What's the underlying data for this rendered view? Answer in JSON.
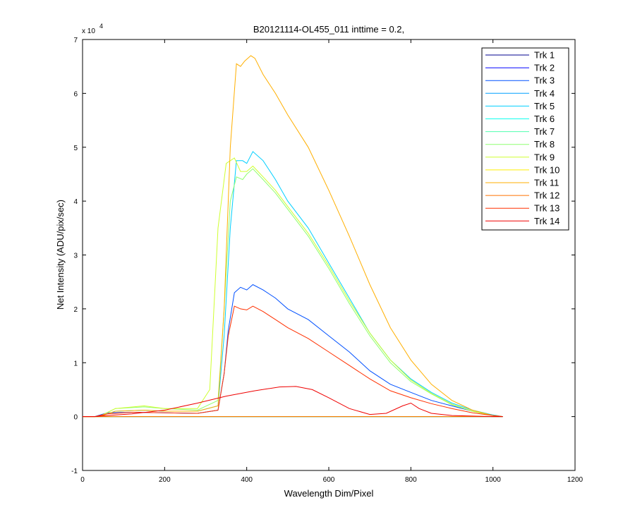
{
  "chart_data": {
    "type": "line",
    "title": "B20121114-OL455_011 inttime = 0.2,",
    "xlabel": "Wavelength Dim/Pixel",
    "ylabel": "Net Intensity (ADU/pix/sec)",
    "y_multiplier_label": "x 10",
    "y_multiplier_exponent": "4",
    "xlim": [
      0,
      1200
    ],
    "ylim": [
      -1,
      7
    ],
    "xticks": [
      0,
      200,
      400,
      600,
      800,
      1000,
      1200
    ],
    "yticks": [
      -1,
      0,
      1,
      2,
      3,
      4,
      5,
      6,
      7
    ],
    "grid": false,
    "legend_position": "top-right",
    "series": [
      {
        "name": "Trk 1",
        "color": "#00008F",
        "x": [
          0,
          1024
        ],
        "y": [
          0,
          0
        ]
      },
      {
        "name": "Trk 2",
        "color": "#0000FF",
        "x": [
          0,
          1024
        ],
        "y": [
          0,
          0
        ]
      },
      {
        "name": "Trk 3",
        "color": "#0050FF",
        "x": [
          0,
          30,
          60,
          120,
          200,
          280,
          330,
          345,
          355,
          370,
          385,
          400,
          415,
          440,
          470,
          500,
          550,
          600,
          650,
          700,
          750,
          800,
          850,
          900,
          950,
          1000,
          1024
        ],
        "y": [
          0,
          0,
          0.07,
          0.08,
          0.07,
          0.06,
          0.12,
          0.8,
          1.6,
          2.3,
          2.4,
          2.35,
          2.45,
          2.35,
          2.2,
          2.0,
          1.8,
          1.5,
          1.2,
          0.85,
          0.6,
          0.45,
          0.3,
          0.2,
          0.1,
          0.02,
          0
        ]
      },
      {
        "name": "Trk 4",
        "color": "#009FFF",
        "x": [
          0,
          1024
        ],
        "y": [
          0,
          0
        ]
      },
      {
        "name": "Trk 5",
        "color": "#00CFFF",
        "x": [
          0,
          40,
          80,
          150,
          200,
          280,
          330,
          345,
          360,
          375,
          390,
          400,
          415,
          440,
          470,
          500,
          550,
          600,
          650,
          700,
          750,
          800,
          850,
          900,
          950,
          1000,
          1024
        ],
        "y": [
          0,
          0,
          0.1,
          0.12,
          0.1,
          0.1,
          0.2,
          1.5,
          3.5,
          4.75,
          4.75,
          4.7,
          4.92,
          4.75,
          4.4,
          4.0,
          3.5,
          2.85,
          2.2,
          1.55,
          1.05,
          0.7,
          0.45,
          0.25,
          0.12,
          0.03,
          0
        ]
      },
      {
        "name": "Trk 6",
        "color": "#10FFEF",
        "x": [
          0,
          1024
        ],
        "y": [
          0,
          0
        ]
      },
      {
        "name": "Trk 7",
        "color": "#50FFAF",
        "x": [
          0,
          1024
        ],
        "y": [
          0,
          0
        ]
      },
      {
        "name": "Trk 8",
        "color": "#8FFF70",
        "x": [
          0,
          40,
          80,
          150,
          200,
          280,
          330,
          345,
          360,
          375,
          390,
          400,
          415,
          440,
          470,
          500,
          550,
          600,
          650,
          700,
          750,
          800,
          850,
          900,
          950,
          1000,
          1024
        ],
        "y": [
          0,
          0,
          0.15,
          0.18,
          0.15,
          0.12,
          0.3,
          2.0,
          4.0,
          4.45,
          4.4,
          4.5,
          4.6,
          4.4,
          4.15,
          3.85,
          3.35,
          2.75,
          2.1,
          1.5,
          1.0,
          0.65,
          0.42,
          0.22,
          0.1,
          0.02,
          0
        ]
      },
      {
        "name": "Trk 9",
        "color": "#CFFF30",
        "x": [
          0,
          40,
          80,
          150,
          200,
          280,
          310,
          330,
          350,
          370,
          385,
          400,
          415,
          440,
          470,
          500,
          550,
          600,
          650,
          700,
          750,
          800,
          850,
          900,
          950,
          1000,
          1024
        ],
        "y": [
          0,
          0,
          0.15,
          0.2,
          0.15,
          0.15,
          0.5,
          3.5,
          4.7,
          4.8,
          4.55,
          4.55,
          4.65,
          4.45,
          4.2,
          3.9,
          3.4,
          2.8,
          2.15,
          1.55,
          1.05,
          0.68,
          0.43,
          0.23,
          0.1,
          0.02,
          0
        ]
      },
      {
        "name": "Trk 10",
        "color": "#FFEF00",
        "x": [
          0,
          1024
        ],
        "y": [
          0,
          0
        ]
      },
      {
        "name": "Trk 11",
        "color": "#FFAF00",
        "x": [
          0,
          40,
          80,
          150,
          200,
          280,
          330,
          345,
          360,
          375,
          385,
          395,
          410,
          420,
          440,
          470,
          500,
          550,
          600,
          650,
          700,
          750,
          800,
          850,
          900,
          950,
          1000,
          1024
        ],
        "y": [
          0,
          0,
          0.1,
          0.12,
          0.1,
          0.1,
          0.2,
          2.0,
          5.0,
          6.55,
          6.5,
          6.6,
          6.7,
          6.65,
          6.35,
          6.0,
          5.6,
          5.0,
          4.2,
          3.35,
          2.45,
          1.65,
          1.05,
          0.6,
          0.3,
          0.12,
          0.02,
          0
        ]
      },
      {
        "name": "Trk 12",
        "color": "#FF7000",
        "x": [
          0,
          1024
        ],
        "y": [
          0,
          0
        ]
      },
      {
        "name": "Trk 13",
        "color": "#FF3000",
        "x": [
          0,
          30,
          60,
          120,
          200,
          280,
          330,
          345,
          355,
          370,
          385,
          400,
          415,
          440,
          470,
          500,
          550,
          600,
          650,
          700,
          750,
          800,
          850,
          900,
          950,
          1000,
          1024
        ],
        "y": [
          0,
          0,
          0.05,
          0.08,
          0.07,
          0.06,
          0.12,
          0.8,
          1.5,
          2.05,
          2.0,
          1.98,
          2.05,
          1.95,
          1.8,
          1.65,
          1.45,
          1.2,
          0.95,
          0.7,
          0.48,
          0.35,
          0.24,
          0.15,
          0.07,
          0.02,
          0
        ]
      },
      {
        "name": "Trk 14",
        "color": "#EF0000",
        "x": [
          0,
          30,
          60,
          120,
          200,
          280,
          350,
          420,
          480,
          520,
          560,
          600,
          650,
          700,
          740,
          780,
          800,
          820,
          850,
          900,
          950,
          1000,
          1024
        ],
        "y": [
          0,
          0,
          0.02,
          0.05,
          0.12,
          0.25,
          0.38,
          0.48,
          0.55,
          0.56,
          0.5,
          0.35,
          0.15,
          0.04,
          0.06,
          0.2,
          0.25,
          0.15,
          0.06,
          0.02,
          0.01,
          0,
          0
        ]
      }
    ]
  }
}
